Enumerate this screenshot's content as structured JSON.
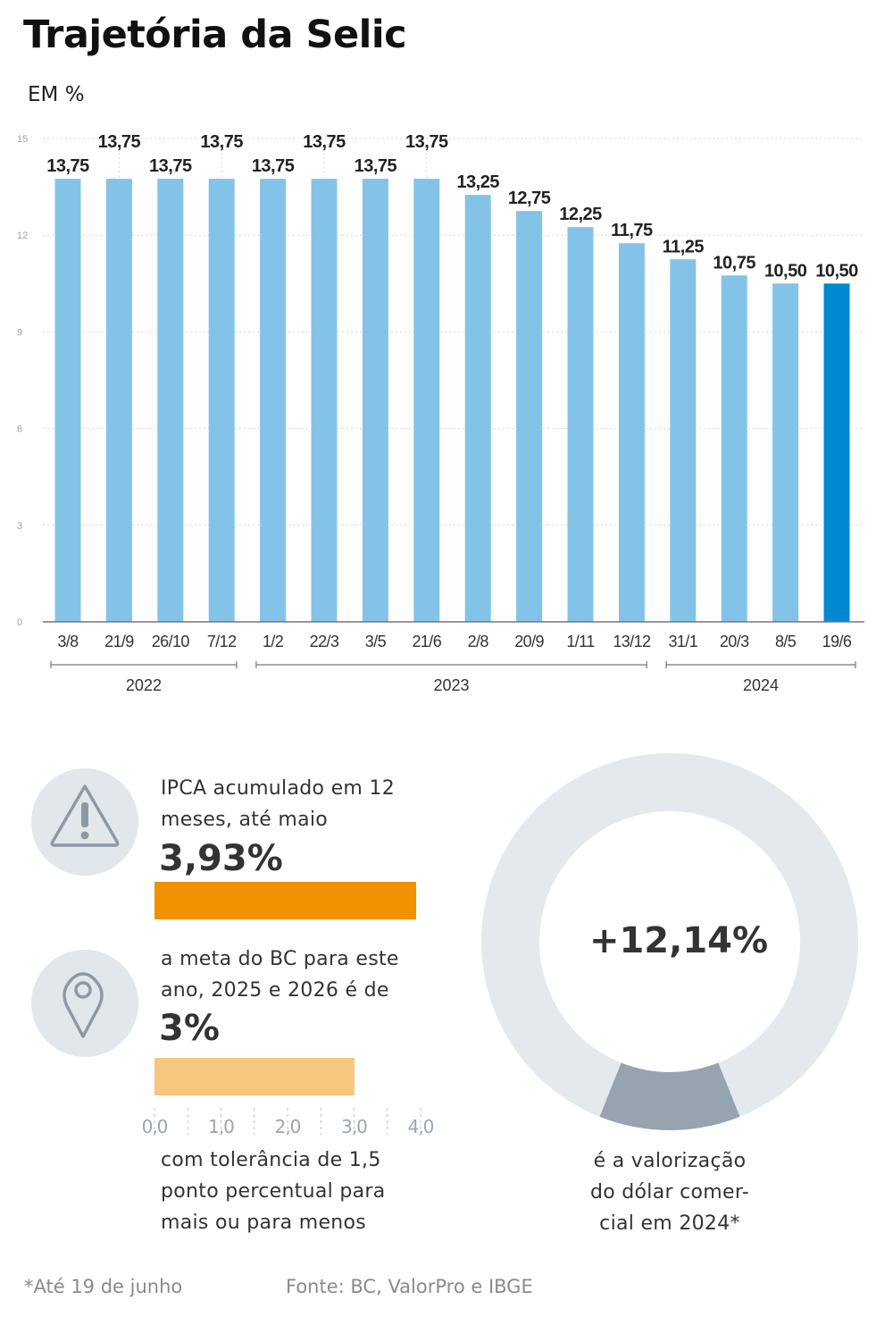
{
  "title": "Trajetória da Selic",
  "unit_label": "EM %",
  "colors": {
    "bar": "#84c3e8",
    "bar_highlight": "#0088d1",
    "ipca_bar": "#f09100",
    "meta_bar": "#f7c67f",
    "donut_track": "#e4e9ed",
    "donut_segment": "#95a4af",
    "icon_bg": "#e2e7ec"
  },
  "chart_data": {
    "type": "bar",
    "title": "Trajetória da Selic",
    "ylabel": "EM %",
    "ylim": [
      0,
      15
    ],
    "yticks": [
      "0",
      "3",
      "6",
      "9",
      "12",
      "15"
    ],
    "categories": [
      "3/8",
      "21/9",
      "26/10",
      "7/12",
      "1/2",
      "22/3",
      "3/5",
      "21/6",
      "2/8",
      "20/9",
      "1/11",
      "13/12",
      "31/1",
      "20/3",
      "8/5",
      "19/6"
    ],
    "values": [
      13.75,
      13.75,
      13.75,
      13.75,
      13.75,
      13.75,
      13.75,
      13.75,
      13.25,
      12.75,
      12.25,
      11.75,
      11.25,
      10.75,
      10.5,
      10.5
    ],
    "value_labels": [
      "13,75",
      "13,75",
      "13,75",
      "13,75",
      "13,75",
      "13,75",
      "13,75",
      "13,75",
      "13,25",
      "12,75",
      "12,25",
      "11,75",
      "11,25",
      "10,75",
      "10,50",
      "10,50"
    ],
    "highlight_index": 15,
    "year_groups": [
      {
        "label": "2022",
        "from": 0,
        "to": 3
      },
      {
        "label": "2023",
        "from": 4,
        "to": 11
      },
      {
        "label": "2024",
        "from": 12,
        "to": 15
      }
    ]
  },
  "ipca": {
    "text_line1": "IPCA acumulado em 12",
    "text_line2": "meses, até maio",
    "value_label": "3,93%",
    "value": 3.93
  },
  "meta": {
    "text_line1": "a meta do BC para este",
    "text_line2": "ano, 2025 e 2026 é de",
    "value_label": "3%",
    "value": 3.0
  },
  "mini_axis": {
    "ticks": [
      "0,0",
      "1,0",
      "2,0",
      "3,0",
      "4,0"
    ],
    "max": 4.0
  },
  "tolerance": {
    "line1": "com tolerância de 1,5",
    "line2": "ponto percentual para",
    "line3": "mais ou para menos"
  },
  "dollar": {
    "value_label": "+12,14%",
    "value": 12.14,
    "caption_line1": "é a valorização",
    "caption_line2": "do dólar comer-",
    "caption_line3": "cial em 2024*"
  },
  "footnote": "*Até 19 de junho",
  "source": "Fonte: BC, ValorPro e IBGE"
}
